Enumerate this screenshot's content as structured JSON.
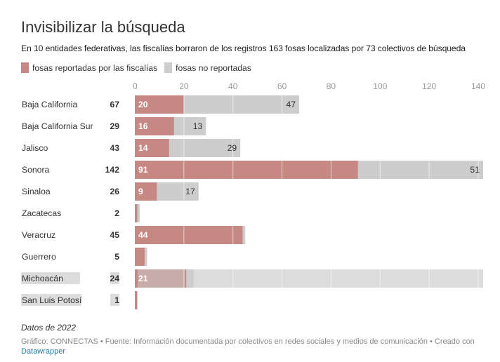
{
  "header": {
    "title": "Invisibilizar la búsqueda",
    "subtitle": "En 10 entidades federativas, las fiscalías borraron de los registros 163 fosas localizadas por 73 colectivos de búsqueda"
  },
  "legend": [
    {
      "label": "fosas reportadas por las fiscalías",
      "color": "#c58883"
    },
    {
      "label": "fosas no reportadas",
      "color": "#cdcdcd"
    }
  ],
  "footer": {
    "notes": "Datos de 2022",
    "credit": "Gráfico: CONNECTAS • Fuente: Información documentada por colectivos en redes sociales y medios de comunicación • Creado con",
    "link": "Datawrapper"
  },
  "colors": {
    "reported": "#c58883",
    "unreported": "#cdcdcd",
    "selection_highlight": "#dcdcdc"
  },
  "chart_data": {
    "type": "bar",
    "orientation": "horizontal",
    "stacked": true,
    "title": "Invisibilizar la búsqueda",
    "xlabel": "",
    "ylabel": "",
    "xlim": [
      0,
      142
    ],
    "xticks": [
      0,
      20,
      40,
      60,
      80,
      100,
      120,
      140
    ],
    "grid": true,
    "legend_position": "top-left",
    "categories": [
      "Baja California",
      "Baja California Sur",
      "Jalisco",
      "Sonora",
      "Sinaloa",
      "Zacatecas",
      "Veracruz",
      "Guerrero",
      "Michoacán",
      "San Luis Potosí"
    ],
    "totals": [
      67,
      29,
      43,
      142,
      26,
      2,
      45,
      5,
      24,
      1
    ],
    "series": [
      {
        "name": "fosas reportadas por las fiscalías",
        "values": [
          20,
          16,
          14,
          91,
          9,
          1,
          44,
          4,
          21,
          1
        ],
        "labels": [
          "20",
          "16",
          "14",
          "91",
          "9",
          "",
          "44",
          "",
          "21",
          ""
        ]
      },
      {
        "name": "fosas no reportadas",
        "values": [
          47,
          13,
          29,
          51,
          17,
          1,
          1,
          1,
          3,
          0
        ],
        "labels": [
          "47",
          "13",
          "29",
          "51",
          "17",
          "",
          "",
          "",
          "",
          ""
        ]
      }
    ],
    "highlighted_rows": [
      "Michoacán",
      "San Luis Potosí"
    ]
  }
}
